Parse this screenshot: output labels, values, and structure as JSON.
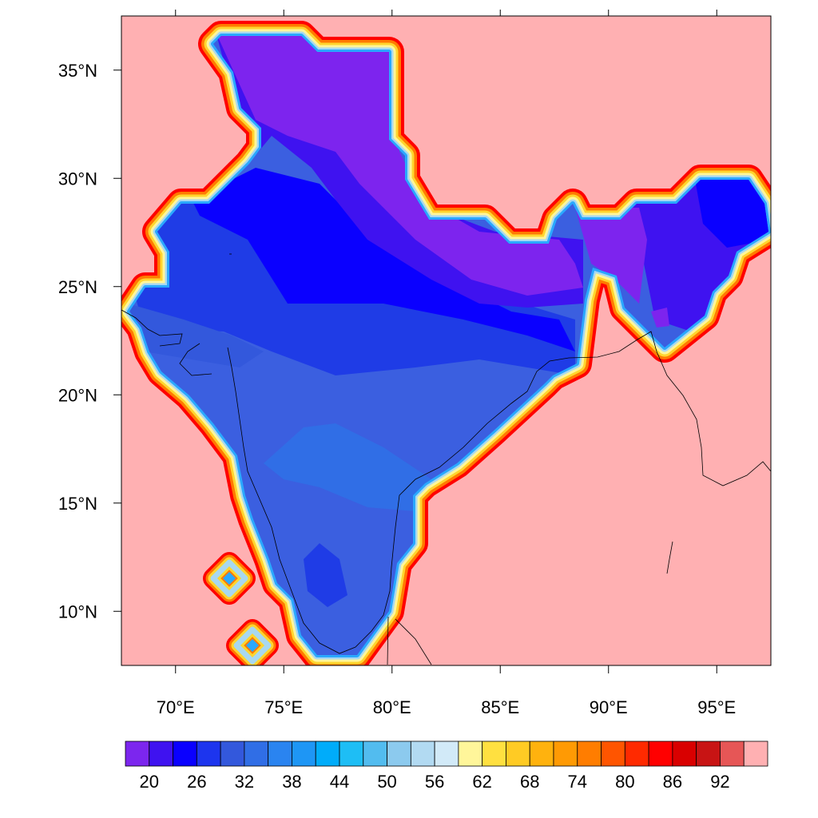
{
  "map": {
    "background_color": "#ffb0b2",
    "land_interior_colors": [
      "#3b5fe0",
      "#1f3ce6",
      "#0a00ff",
      "#3f12f0",
      "#7d24ee"
    ],
    "coast_band_colors": [
      "#ff0000",
      "#ff7a00",
      "#ffd52e",
      "#fff59a",
      "#a8d8f0",
      "#2aa8ff"
    ],
    "lon_range": [
      67.5,
      97.5
    ],
    "lat_range": [
      7.5,
      37.5
    ],
    "x_tick_labels": [
      "70°E",
      "75°E",
      "80°E",
      "85°E",
      "90°E",
      "95°E"
    ],
    "x_tick_values": [
      70,
      75,
      80,
      85,
      90,
      95
    ],
    "y_tick_labels": [
      "35°N",
      "30°N",
      "25°N",
      "20°N",
      "15°N",
      "10°N"
    ],
    "y_tick_values": [
      35,
      30,
      25,
      20,
      15,
      10
    ]
  },
  "colorbar": {
    "colors": [
      "#7c26ee",
      "#3f12f0",
      "#0a00ff",
      "#1d35ee",
      "#3358dc",
      "#306ee6",
      "#2a84f0",
      "#1e96f5",
      "#00acfa",
      "#1ebef5",
      "#52bcef",
      "#8ccaee",
      "#b2daf2",
      "#d2eaf8",
      "#fff69a",
      "#ffe040",
      "#ffcb24",
      "#ffb20e",
      "#ff9a04",
      "#ff7d00",
      "#ff5500",
      "#ff2a00",
      "#ff0000",
      "#d90000",
      "#c81414",
      "#e65656",
      "#ffb0b2"
    ],
    "labels": [
      "20",
      "26",
      "32",
      "38",
      "44",
      "50",
      "56",
      "62",
      "68",
      "74",
      "80",
      "86",
      "92"
    ]
  }
}
